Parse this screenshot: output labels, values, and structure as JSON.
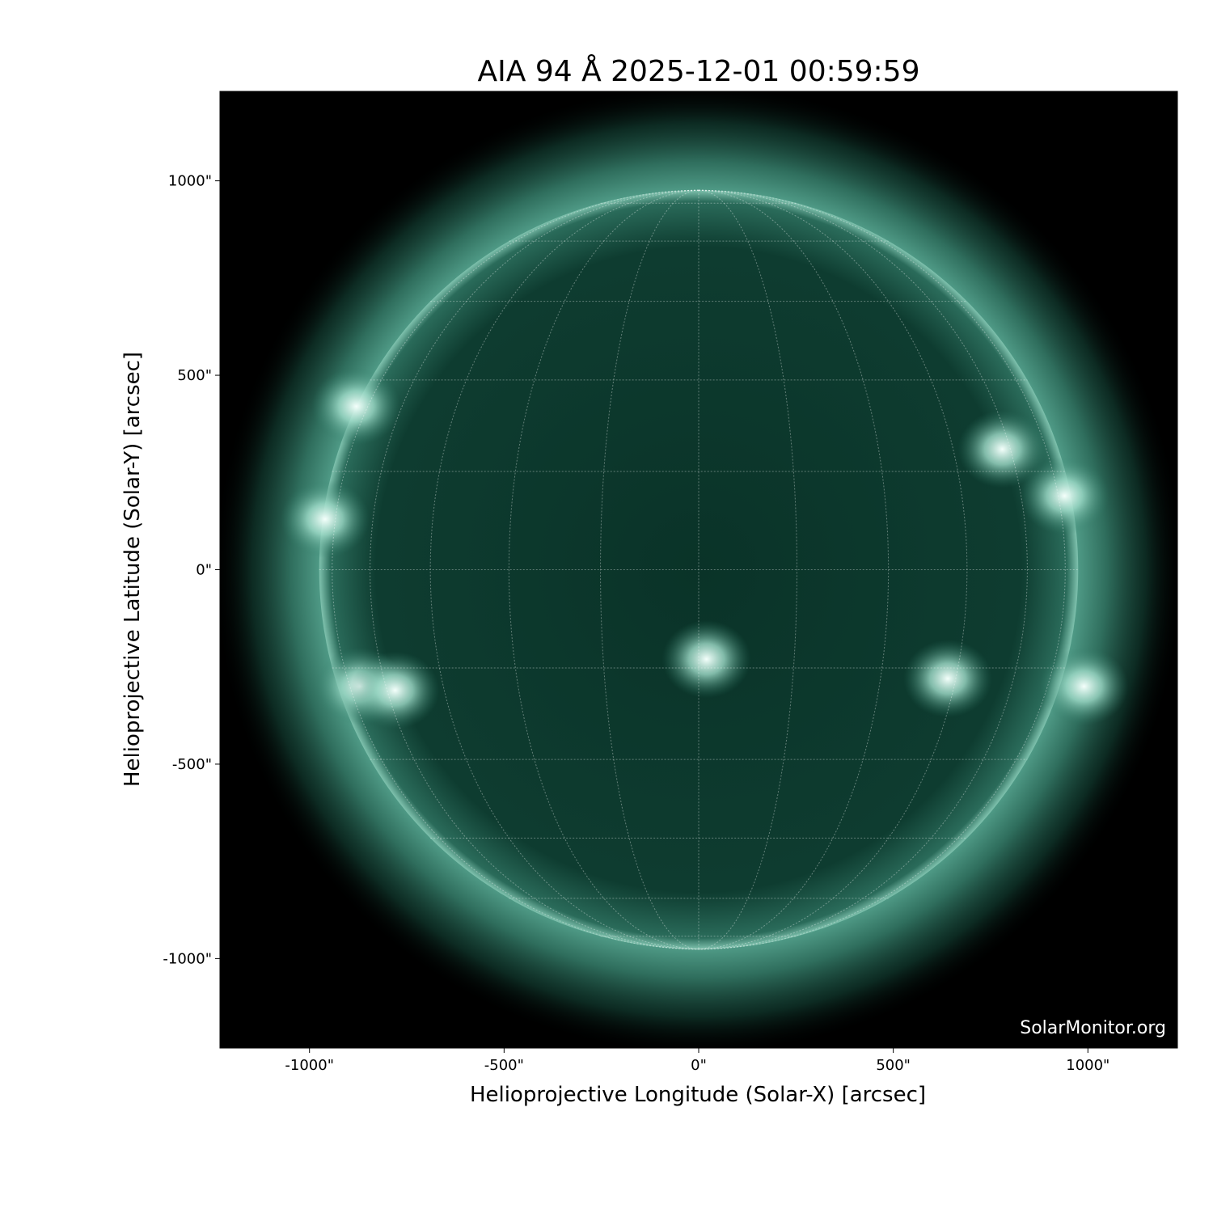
{
  "chart_data": {
    "type": "image",
    "title": "AIA 94 Å 2025-12-01 00:59:59",
    "xlabel": "Helioprojective Longitude (Solar-X) [arcsec]",
    "ylabel": "Helioprojective Latitude (Solar-Y) [arcsec]",
    "xlim": [
      -1230,
      1230
    ],
    "ylim": [
      -1230,
      1230
    ],
    "xticks": [
      -1000,
      -500,
      0,
      500,
      1000
    ],
    "yticks": [
      -1000,
      -500,
      0,
      500,
      1000
    ],
    "xtick_labels": [
      "-1000\"",
      "-500\"",
      "0\"",
      "500\"",
      "1000\""
    ],
    "ytick_labels": [
      "-1000\"",
      "-500\"",
      "0\"",
      "500\"",
      "1000\""
    ],
    "solar_radius_arcsec": 975,
    "grid_spacing_deg": 15,
    "colormap": "sdoaia94",
    "colors": {
      "background": "#000000",
      "disk": "#0d3a2e",
      "limb": "#5fa896",
      "bright": "#e8fff8"
    },
    "active_regions": [
      {
        "x": -960,
        "y": 130
      },
      {
        "x": -880,
        "y": 420
      },
      {
        "x": -870,
        "y": -300
      },
      {
        "x": -780,
        "y": -310
      },
      {
        "x": 780,
        "y": 310
      },
      {
        "x": 940,
        "y": 190
      },
      {
        "x": 640,
        "y": -280
      },
      {
        "x": 990,
        "y": -300
      },
      {
        "x": 20,
        "y": -230
      }
    ],
    "watermark": "SolarMonitor.org"
  }
}
